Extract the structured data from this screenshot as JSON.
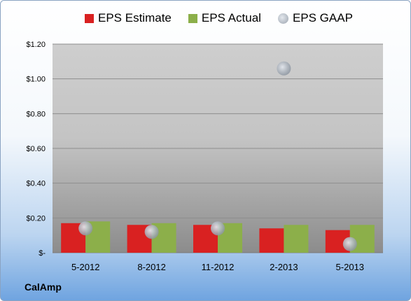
{
  "chart_data": {
    "type": "bar",
    "categories": [
      "5-2012",
      "8-2012",
      "11-2012",
      "2-2013",
      "5-2013"
    ],
    "series": [
      {
        "name": "EPS Estimate",
        "values": [
          0.17,
          0.16,
          0.16,
          0.14,
          0.13
        ],
        "color": "#d92121"
      },
      {
        "name": "EPS Actual",
        "values": [
          0.18,
          0.17,
          0.17,
          0.16,
          0.16
        ],
        "color": "#8caf4a"
      },
      {
        "name": "EPS GAAP",
        "kind": "point",
        "values": [
          0.14,
          0.12,
          0.14,
          1.06,
          0.05
        ],
        "color": "#b5bcc6"
      }
    ],
    "ylim": [
      0,
      1.2
    ],
    "yticks": [
      0,
      0.2,
      0.4,
      0.6,
      0.8,
      1.0,
      1.2
    ],
    "ytick_labels": [
      "$-",
      "$0.20",
      "$0.40",
      "$0.60",
      "$0.80",
      "$1.00",
      "$1.20"
    ],
    "grid": true,
    "legend": "top",
    "title": "",
    "xlabel": "",
    "ylabel": ""
  },
  "company": "CalAmp"
}
